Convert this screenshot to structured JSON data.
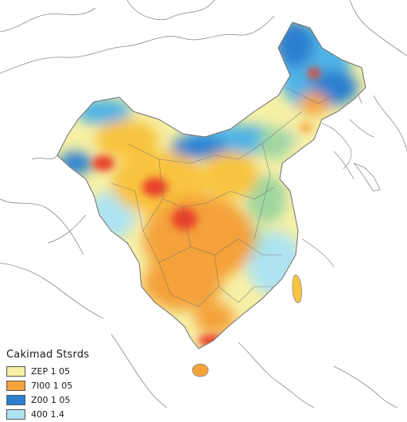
{
  "legend": {
    "title": "Cakimad Stsrds",
    "items": [
      {
        "label": "ZEP 1 05",
        "color": "#f6f0a6"
      },
      {
        "label": "7I00 1 05",
        "color": "#f4a23a"
      },
      {
        "label": "Z00 1 05",
        "color": "#2a7fd0"
      },
      {
        "label": "400 1.4",
        "color": "#aee3f2"
      }
    ]
  },
  "palette": {
    "cool_light": "#aee3f2",
    "cool_mid": "#4fb3e6",
    "cool_dark": "#2a7fd0",
    "neutral_green": "#9fd6a0",
    "warm_light": "#f6f0a6",
    "warm_mid": "#f8c440",
    "warm_orange": "#f4a23a",
    "hot_red": "#e8402a",
    "land_outline": "#7a7a7a"
  }
}
